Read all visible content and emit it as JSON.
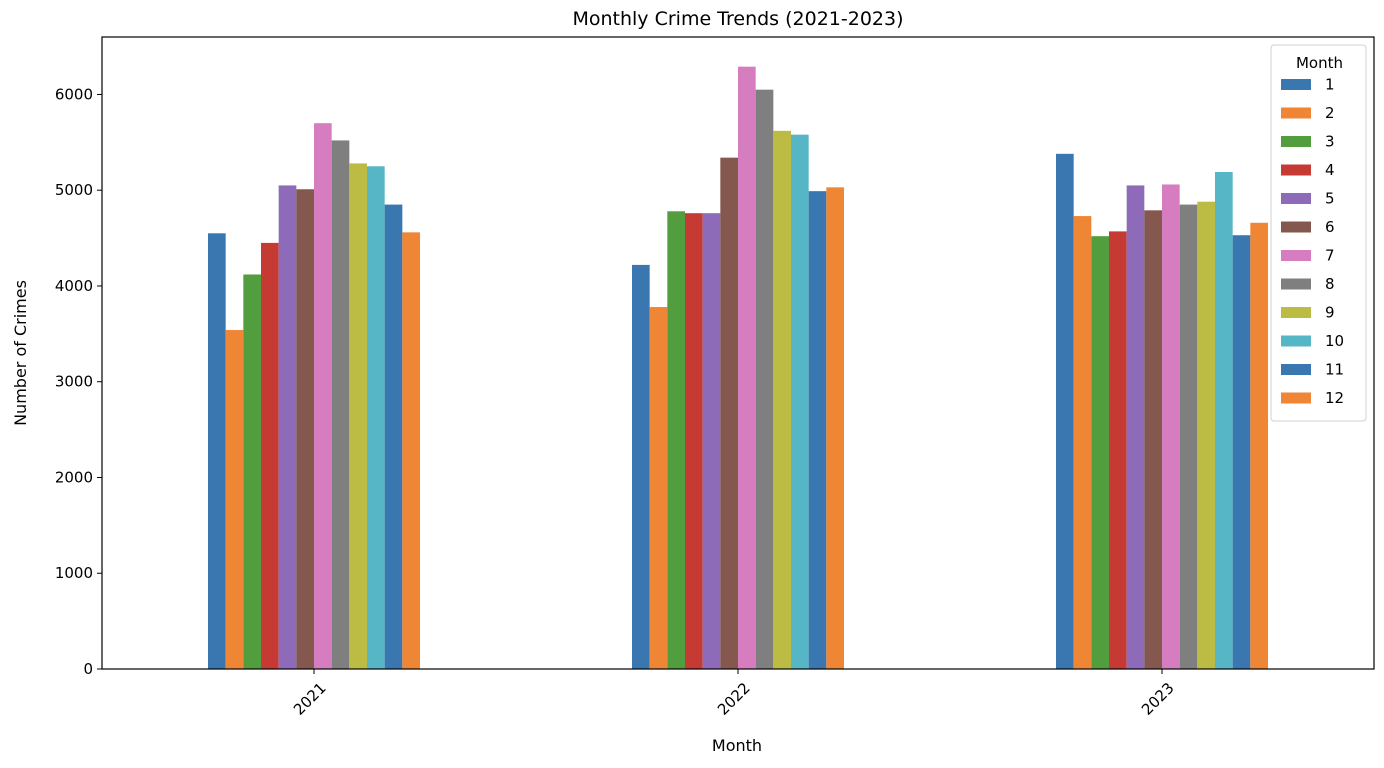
{
  "chart_data": {
    "type": "bar",
    "title": "Monthly Crime Trends (2021-2023)",
    "xlabel": "Month",
    "ylabel": "Number of Crimes",
    "categories": [
      "2021",
      "2022",
      "2023"
    ],
    "ylim": [
      0,
      6600
    ],
    "yticks": [
      0,
      1000,
      2000,
      3000,
      4000,
      5000,
      6000
    ],
    "xtick_rotation": 45,
    "grid": false,
    "legend": {
      "title": "Month",
      "placement": "top-right"
    },
    "series": [
      {
        "name": "1",
        "color": "#3a76af",
        "values": [
          4550,
          4220,
          5380
        ]
      },
      {
        "name": "2",
        "color": "#ef8636",
        "values": [
          3540,
          3780,
          4730
        ]
      },
      {
        "name": "3",
        "color": "#529e3e",
        "values": [
          4120,
          4780,
          4520
        ]
      },
      {
        "name": "4",
        "color": "#c53a32",
        "values": [
          4450,
          4760,
          4570
        ]
      },
      {
        "name": "5",
        "color": "#8d6bb8",
        "values": [
          5050,
          4760,
          5050
        ]
      },
      {
        "name": "6",
        "color": "#84584e",
        "values": [
          5010,
          5340,
          4790
        ]
      },
      {
        "name": "7",
        "color": "#d57dbe",
        "values": [
          5700,
          6290,
          5060
        ]
      },
      {
        "name": "8",
        "color": "#7f7f7f",
        "values": [
          5520,
          6050,
          4850
        ]
      },
      {
        "name": "9",
        "color": "#bcbc45",
        "values": [
          5280,
          5620,
          4880
        ]
      },
      {
        "name": "10",
        "color": "#56b6c5",
        "values": [
          5250,
          5580,
          5190
        ]
      },
      {
        "name": "11",
        "color": "#3a76af",
        "values": [
          4850,
          4990,
          4530
        ]
      },
      {
        "name": "12",
        "color": "#ef8636",
        "values": [
          4560,
          5030,
          4660
        ]
      }
    ]
  }
}
